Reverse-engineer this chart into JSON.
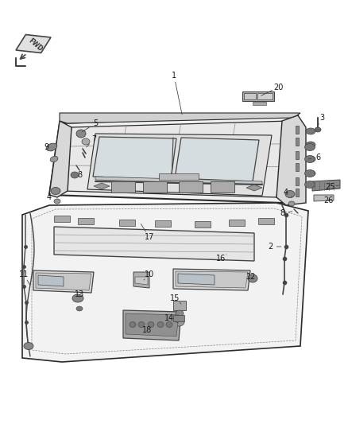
{
  "bg_color": "#ffffff",
  "lc": "#2a2a2a",
  "gray": "#888888",
  "dgray": "#444444",
  "lgray": "#cccccc",
  "figsize": [
    4.38,
    5.33
  ],
  "dpi": 100,
  "labels": [
    [
      "1",
      219,
      95
    ],
    [
      "2",
      340,
      310
    ],
    [
      "3",
      405,
      148
    ],
    [
      "4",
      62,
      248
    ],
    [
      "4",
      360,
      242
    ],
    [
      "5",
      120,
      155
    ],
    [
      "6",
      400,
      198
    ],
    [
      "7",
      118,
      175
    ],
    [
      "8",
      100,
      220
    ],
    [
      "8",
      355,
      268
    ],
    [
      "9",
      58,
      185
    ],
    [
      "10",
      188,
      345
    ],
    [
      "11",
      30,
      345
    ],
    [
      "12",
      316,
      348
    ],
    [
      "13",
      100,
      370
    ],
    [
      "14",
      213,
      400
    ],
    [
      "15",
      220,
      375
    ],
    [
      "16",
      278,
      325
    ],
    [
      "17",
      188,
      298
    ],
    [
      "18",
      185,
      415
    ],
    [
      "20",
      350,
      110
    ],
    [
      "25",
      415,
      235
    ],
    [
      "26",
      413,
      252
    ]
  ]
}
